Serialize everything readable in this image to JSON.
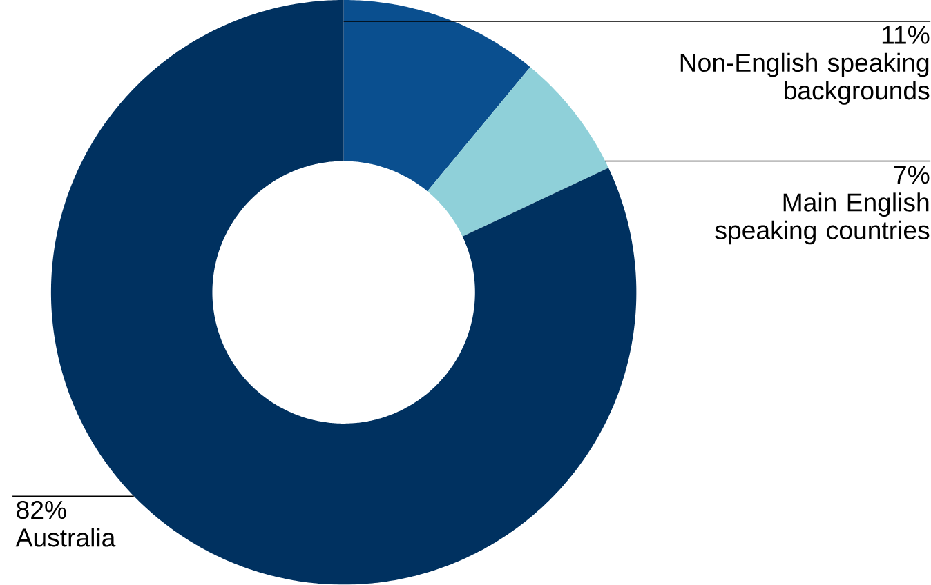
{
  "chart_data": {
    "type": "donut",
    "categories": [
      "Non-English speaking backgrounds",
      "Main English speaking countries",
      "Australia"
    ],
    "values": [
      11,
      7,
      82
    ],
    "value_labels": [
      "11%",
      "7%",
      "82%"
    ],
    "colors": [
      "#0a4f8f",
      "#8fd0d9",
      "#003160"
    ]
  }
}
